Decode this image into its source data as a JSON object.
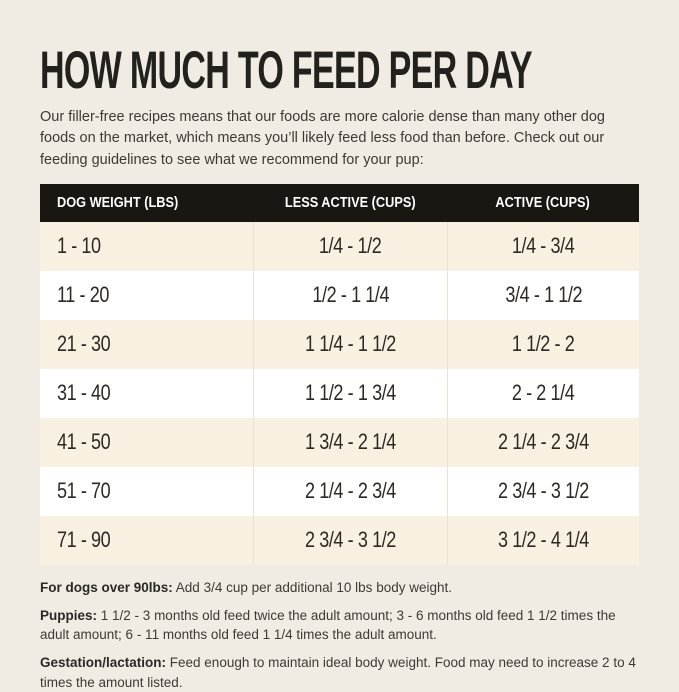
{
  "header": {
    "title": "HOW MUCH TO FEED PER DAY",
    "intro": "Our filler-free recipes means that our foods are more calorie dense than many other dog foods on the market, which means you’ll likely feed less food than before. Check out our feeding guidelines to see what we recommend for your pup:"
  },
  "table": {
    "columns": [
      "DOG WEIGHT (LBS)",
      "LESS ACTIVE (CUPS)",
      "ACTIVE (CUPS)"
    ],
    "rows": [
      [
        "1 - 10",
        "1/4 - 1/2",
        "1/4 - 3/4"
      ],
      [
        "11 - 20",
        "1/2 - 1 1/4",
        "3/4 - 1 1/2"
      ],
      [
        "21 - 30",
        "1 1/4 - 1 1/2",
        "1 1/2 - 2"
      ],
      [
        "31 - 40",
        "1 1/2 - 1 3/4",
        "2 - 2 1/4"
      ],
      [
        "41 - 50",
        "1 3/4 - 2 1/4",
        "2 1/4 - 2 3/4"
      ],
      [
        "51 - 70",
        "2 1/4 - 2 3/4",
        "2 3/4 - 3 1/2"
      ],
      [
        "71 - 90",
        "2 3/4 - 3 1/2",
        "3 1/2 - 4 1/4"
      ]
    ]
  },
  "notes": [
    {
      "label": "For dogs over 90lbs:",
      "text": "Add 3/4 cup per additional 10 lbs body weight."
    },
    {
      "label": "Puppies:",
      "text": "1 1/2 - 3 months old feed twice the adult amount; 3 - 6 months old feed 1 1/2 times the adult amount; 6 - 11 months old feed 1 1/4 times the adult amount."
    },
    {
      "label": "Gestation/lactation:",
      "text": "Feed enough to maintain ideal body weight. Food may need to increase 2 to 4 times the amount listed."
    }
  ],
  "colors": {
    "page_background": "#f0ebe3",
    "table_header_bar": "#1a1713",
    "table_header_text": "#ffffff",
    "row_cream": "#f8f0e1",
    "row_white": "#ffffff",
    "title_text": "#23211d",
    "body_text": "#3d3a35",
    "cell_text": "#2b2925"
  }
}
